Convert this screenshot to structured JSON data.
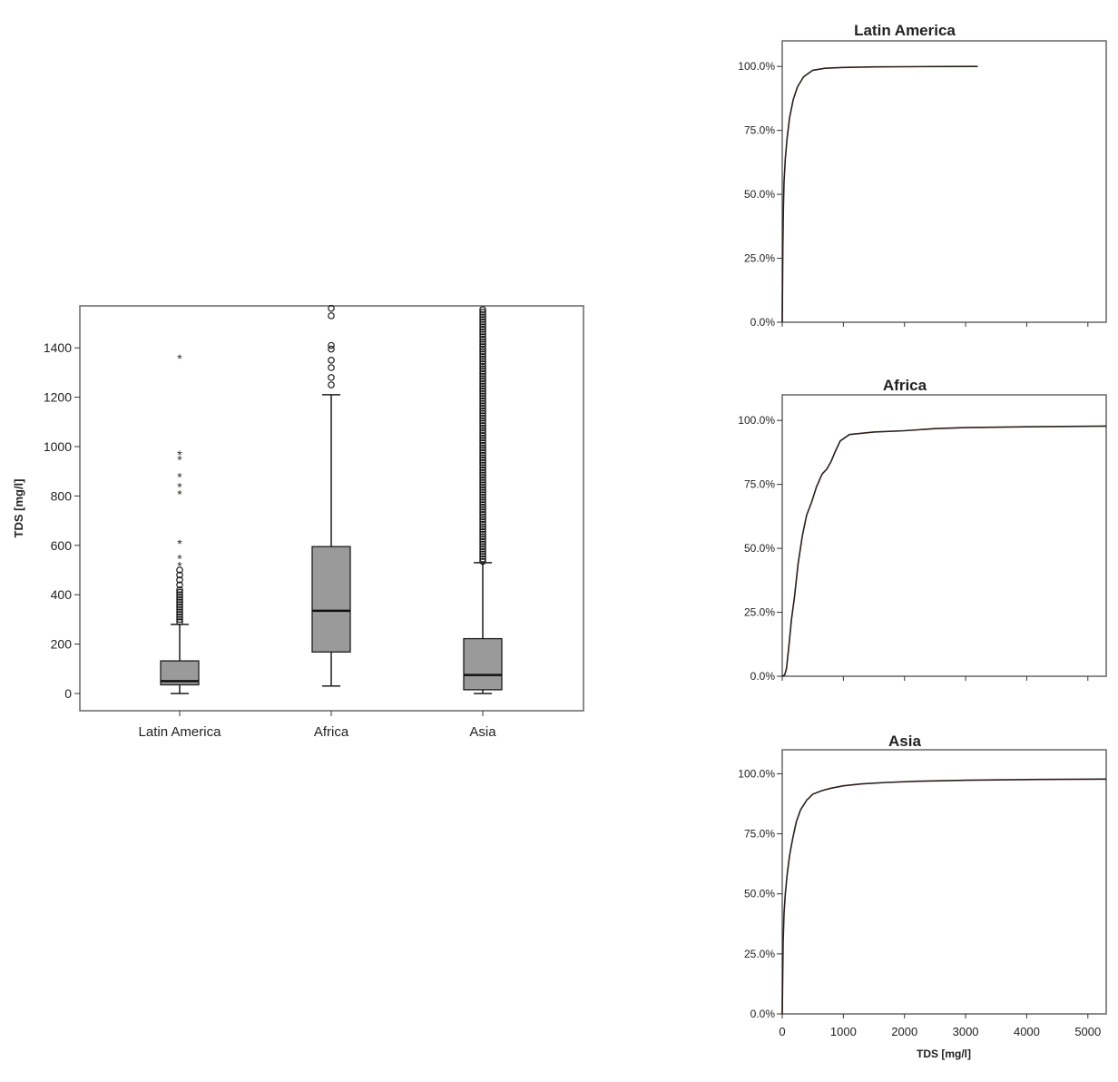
{
  "chart_data": [
    {
      "type": "box",
      "title": "",
      "xlabel": "",
      "ylabel": "TDS [mg/l]",
      "ylim": [
        -70,
        1570
      ],
      "yticks": [
        0,
        200,
        400,
        600,
        800,
        1000,
        1200,
        1400
      ],
      "grid": false,
      "categories": [
        "Latin America",
        "Africa",
        "Asia"
      ],
      "boxes": [
        {
          "category": "Latin America",
          "whisker_low": 0,
          "q1": 35,
          "median": 50,
          "q3": 132,
          "whisker_high": 280,
          "outliers_circle": [
            290,
            300,
            310,
            320,
            330,
            340,
            350,
            360,
            370,
            380,
            390,
            400,
            410,
            420,
            440,
            460,
            480,
            500
          ],
          "outliers_extreme": [
            520,
            550,
            610,
            810,
            840,
            880,
            950,
            970,
            1360
          ]
        },
        {
          "category": "Africa",
          "whisker_low": 30,
          "q1": 168,
          "median": 335,
          "q3": 595,
          "whisker_high": 1210,
          "outliers_circle": [
            1250,
            1280,
            1320,
            1350,
            1395,
            1410,
            1530,
            1560
          ],
          "outliers_extreme": []
        },
        {
          "category": "Asia",
          "whisker_low": 0,
          "q1": 15,
          "median": 75,
          "q3": 222,
          "whisker_high": 530,
          "outliers_dense_range": [
            535,
            1560
          ],
          "outliers_circle": [],
          "outliers_extreme": []
        }
      ]
    },
    {
      "type": "line",
      "title": "Latin America",
      "xlabel": "",
      "ylabel": "",
      "xlim": [
        0,
        5300
      ],
      "ylim": [
        0,
        110
      ],
      "yticks": [
        "0.0%",
        "25.0%",
        "50.0%",
        "75.0%",
        "100.0%"
      ],
      "grid": false,
      "series": [
        {
          "x": [
            0,
            10,
            20,
            30,
            50,
            80,
            120,
            180,
            250,
            350,
            500,
            700,
            1000,
            1500,
            2000,
            2500,
            3200
          ],
          "y": [
            0,
            30,
            45,
            55,
            64,
            72,
            80,
            87,
            92,
            96,
            98.5,
            99.3,
            99.6,
            99.8,
            99.9,
            99.95,
            100
          ]
        }
      ]
    },
    {
      "type": "line",
      "title": "Africa",
      "xlabel": "",
      "ylabel": "",
      "xlim": [
        0,
        5300
      ],
      "ylim": [
        0,
        110
      ],
      "yticks": [
        "0.0%",
        "25.0%",
        "50.0%",
        "75.0%",
        "100.0%"
      ],
      "grid": false,
      "series": [
        {
          "x": [
            0,
            40,
            70,
            110,
            150,
            200,
            260,
            330,
            400,
            480,
            560,
            650,
            730,
            800,
            870,
            950,
            1100,
            1500,
            2000,
            2500,
            3000,
            4000,
            5300
          ],
          "y": [
            0,
            0.5,
            3,
            12,
            22,
            31,
            44,
            55,
            63,
            68,
            74,
            79,
            81,
            84,
            88,
            92,
            94.5,
            95.5,
            96,
            96.8,
            97.2,
            97.5,
            97.8
          ]
        }
      ]
    },
    {
      "type": "line",
      "title": "Asia",
      "xlabel": "TDS [mg/l]",
      "ylabel": "",
      "xlim": [
        0,
        5300
      ],
      "ylim": [
        0,
        110
      ],
      "xticks": [
        0,
        1000,
        2000,
        3000,
        4000,
        5000
      ],
      "yticks": [
        "0.0%",
        "25.0%",
        "50.0%",
        "75.0%",
        "100.0%"
      ],
      "grid": false,
      "series": [
        {
          "x": [
            0,
            15,
            30,
            50,
            80,
            120,
            170,
            230,
            300,
            400,
            500,
            650,
            800,
            1000,
            1300,
            1700,
            2200,
            3000,
            4000,
            5300
          ],
          "y": [
            0,
            30,
            42,
            50,
            58,
            66,
            73,
            80,
            85,
            89,
            91.5,
            93,
            94,
            95,
            95.8,
            96.4,
            96.9,
            97.3,
            97.6,
            97.8
          ]
        }
      ]
    }
  ]
}
